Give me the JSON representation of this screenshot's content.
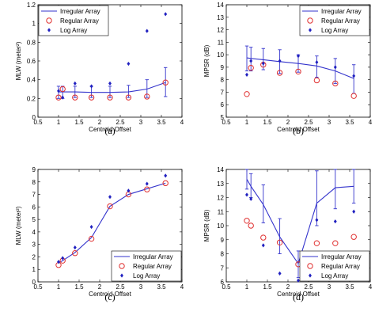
{
  "chart_data": [
    {
      "id": "a",
      "type": "line",
      "panel_label": "(a)",
      "xlabel": "Centroid Offset",
      "ylabel": "MLW (meter²)",
      "xlim": [
        0.5,
        4
      ],
      "ylim": [
        0,
        1.2
      ],
      "xticks": [
        "0.5",
        "1",
        "1.5",
        "2",
        "2.5",
        "3",
        "3.5",
        "4"
      ],
      "yticks": [
        "0",
        "0.2",
        "0.4",
        "0.6",
        "0.8",
        "1",
        "1.2"
      ],
      "legend_position": "top-left",
      "x": [
        1.0,
        1.1,
        1.4,
        1.8,
        2.25,
        2.7,
        3.15,
        3.6
      ],
      "series": [
        {
          "name": "Irregular Array",
          "style": "line",
          "color": "#3333cc",
          "values": [
            0.27,
            0.27,
            0.27,
            0.265,
            0.265,
            0.27,
            0.3,
            0.37
          ],
          "err_low": [
            0.2,
            0.2,
            0.21,
            0.21,
            0.21,
            0.21,
            0.21,
            0.22
          ],
          "err_high": [
            0.33,
            0.33,
            0.33,
            0.33,
            0.33,
            0.34,
            0.4,
            0.53
          ]
        },
        {
          "name": "Regular Array",
          "style": "circle",
          "color": "#e03030",
          "values": [
            0.21,
            0.3,
            0.21,
            0.21,
            0.21,
            0.21,
            0.22,
            0.37
          ]
        },
        {
          "name": "Log Array",
          "style": "diamond",
          "color": "#2020c0",
          "values": [
            0.28,
            0.21,
            0.36,
            0.33,
            0.36,
            0.57,
            0.92,
            1.1
          ]
        }
      ]
    },
    {
      "id": "b",
      "type": "line",
      "panel_label": "(b)",
      "xlabel": "Centroid Offset",
      "ylabel": "MPSR (dB)",
      "xlim": [
        0.5,
        4
      ],
      "ylim": [
        5,
        14
      ],
      "xticks": [
        "0.5",
        "1",
        "1.5",
        "2",
        "2.5",
        "3",
        "3.5",
        "4"
      ],
      "yticks": [
        "5",
        "6",
        "7",
        "8",
        "9",
        "10",
        "11",
        "12",
        "13",
        "14"
      ],
      "legend_position": "top-right",
      "x": [
        1.0,
        1.1,
        1.4,
        1.8,
        2.25,
        2.7,
        3.15,
        3.6
      ],
      "series": [
        {
          "name": "Irregular Array",
          "style": "line",
          "color": "#3333cc",
          "values": [
            9.75,
            9.7,
            9.6,
            9.45,
            9.3,
            9.1,
            8.7,
            8.1
          ],
          "err_low": [
            8.7,
            8.7,
            8.8,
            8.5,
            8.6,
            8.2,
            7.7,
            6.9
          ],
          "err_high": [
            10.7,
            10.6,
            10.5,
            10.4,
            10.0,
            9.9,
            9.7,
            9.2
          ]
        },
        {
          "name": "Regular Array",
          "style": "circle",
          "color": "#e03030",
          "values": [
            6.85,
            8.95,
            9.2,
            8.55,
            8.65,
            7.95,
            7.7,
            6.7
          ]
        },
        {
          "name": "Log Array",
          "style": "diamond",
          "color": "#2020c0",
          "values": [
            8.4,
            9.5,
            9.3,
            9.5,
            9.9,
            9.4,
            9.0,
            8.3
          ]
        }
      ]
    },
    {
      "id": "c",
      "type": "line",
      "panel_label": "(c)",
      "xlabel": "Centroid Offset",
      "ylabel": "MLW (meter²)",
      "xlim": [
        0.5,
        4
      ],
      "ylim": [
        0,
        9
      ],
      "xticks": [
        "0.5",
        "1",
        "1.5",
        "2",
        "2.5",
        "3",
        "3.5",
        "4"
      ],
      "yticks": [
        "0",
        "1",
        "2",
        "3",
        "4",
        "5",
        "6",
        "7",
        "8",
        "9"
      ],
      "legend_position": "bottom-right",
      "x": [
        1.0,
        1.1,
        1.4,
        1.8,
        2.25,
        2.7,
        3.15,
        3.6
      ],
      "series": [
        {
          "name": "Irregular Array",
          "style": "line",
          "color": "#3333cc",
          "values": [
            1.5,
            1.7,
            2.35,
            3.55,
            6.05,
            7.0,
            7.45,
            7.9
          ]
        },
        {
          "name": "Regular Array",
          "style": "circle",
          "color": "#e03030",
          "values": [
            1.35,
            1.7,
            2.3,
            3.45,
            6.05,
            7.0,
            7.4,
            7.9
          ]
        },
        {
          "name": "Log Array",
          "style": "diamond",
          "color": "#2020c0",
          "values": [
            1.6,
            1.9,
            2.75,
            4.4,
            6.8,
            7.3,
            7.85,
            8.5
          ]
        }
      ]
    },
    {
      "id": "d",
      "type": "line",
      "panel_label": "(d)",
      "xlabel": "Centroid Offset",
      "ylabel": "MPSR (dB)",
      "xlim": [
        0.5,
        4
      ],
      "ylim": [
        6,
        14
      ],
      "xticks": [
        "0.5",
        "1",
        "1.5",
        "2",
        "2.5",
        "3",
        "3.5",
        "4"
      ],
      "yticks": [
        "6",
        "7",
        "8",
        "9",
        "10",
        "11",
        "12",
        "13",
        "14"
      ],
      "legend_position": "bottom-right",
      "x": [
        1.0,
        1.1,
        1.4,
        1.8,
        2.25,
        2.7,
        3.15,
        3.6
      ],
      "series": [
        {
          "name": "Irregular Array",
          "style": "line",
          "color": "#3333cc",
          "values": [
            13.3,
            12.8,
            11.5,
            9.2,
            7.3,
            11.6,
            12.7,
            12.8
          ],
          "err_low": [
            12.6,
            12.0,
            10.2,
            8.0,
            6.3,
            10.0,
            11.2,
            11.6
          ],
          "err_high": [
            14.0,
            13.7,
            12.9,
            10.5,
            8.2,
            13.9,
            14.0,
            14.0
          ]
        },
        {
          "name": "Regular Array",
          "style": "circle",
          "color": "#e03030",
          "values": [
            10.35,
            10.0,
            9.15,
            8.8,
            7.25,
            8.75,
            8.75,
            9.2
          ]
        },
        {
          "name": "Log Array",
          "style": "diamond",
          "color": "#2020c0",
          "values": [
            12.2,
            11.9,
            8.6,
            6.6,
            6.1,
            10.4,
            10.3,
            11.0
          ]
        }
      ]
    }
  ]
}
